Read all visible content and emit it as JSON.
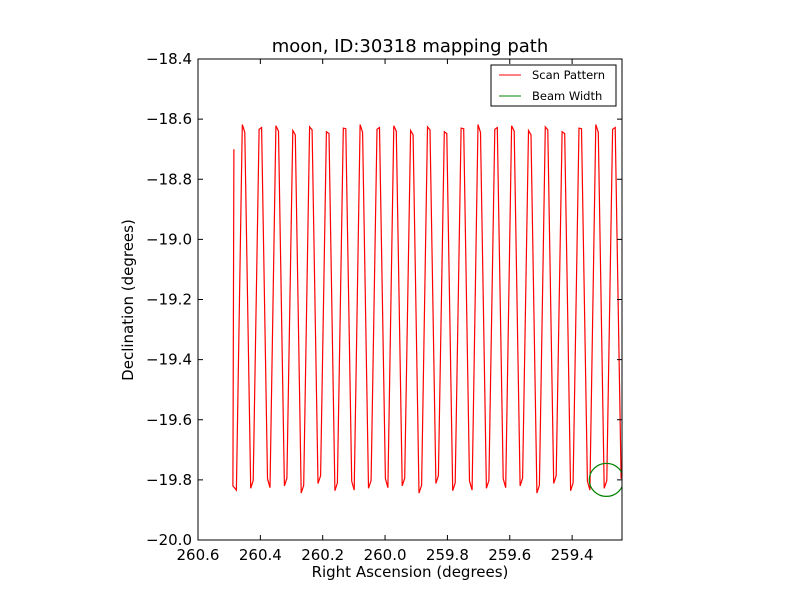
{
  "chart_data": {
    "type": "line",
    "title": "moon, ID:30318 mapping path",
    "xlabel": "Right Ascension (degrees)",
    "ylabel": "Declination (degrees)",
    "xlim": [
      260.6,
      259.24
    ],
    "ylim": [
      -20.0,
      -18.4
    ],
    "x_inverted": true,
    "xticks": [
      260.6,
      260.4,
      260.2,
      260.0,
      259.8,
      259.6,
      259.4
    ],
    "xtick_labels": [
      "260.6",
      "260.4",
      "260.2",
      "260.0",
      "259.8",
      "259.6",
      "259.4"
    ],
    "yticks": [
      -18.4,
      -18.6,
      -18.8,
      -19.0,
      -19.2,
      -19.4,
      -19.6,
      -19.8,
      -20.0
    ],
    "ytick_labels": [
      "−18.4",
      "−18.6",
      "−18.8",
      "−19.0",
      "−19.2",
      "−19.4",
      "−19.6",
      "−19.8",
      "−20.0"
    ],
    "grid": false,
    "legend_position": "top-right",
    "scan_pattern": {
      "start_ra": 260.485,
      "end_ra": 259.243,
      "n_legs": 46,
      "top_dec": -18.63,
      "bottom_dec": -19.82,
      "start_dec": -18.7
    },
    "series": [
      {
        "name": "Scan Pattern",
        "color": "#ff0000"
      },
      {
        "name": "Beam Width",
        "color": "#008000"
      }
    ],
    "beam_circle": {
      "center_ra": 259.29,
      "center_dec": -19.8,
      "radius_deg": 0.055
    }
  }
}
